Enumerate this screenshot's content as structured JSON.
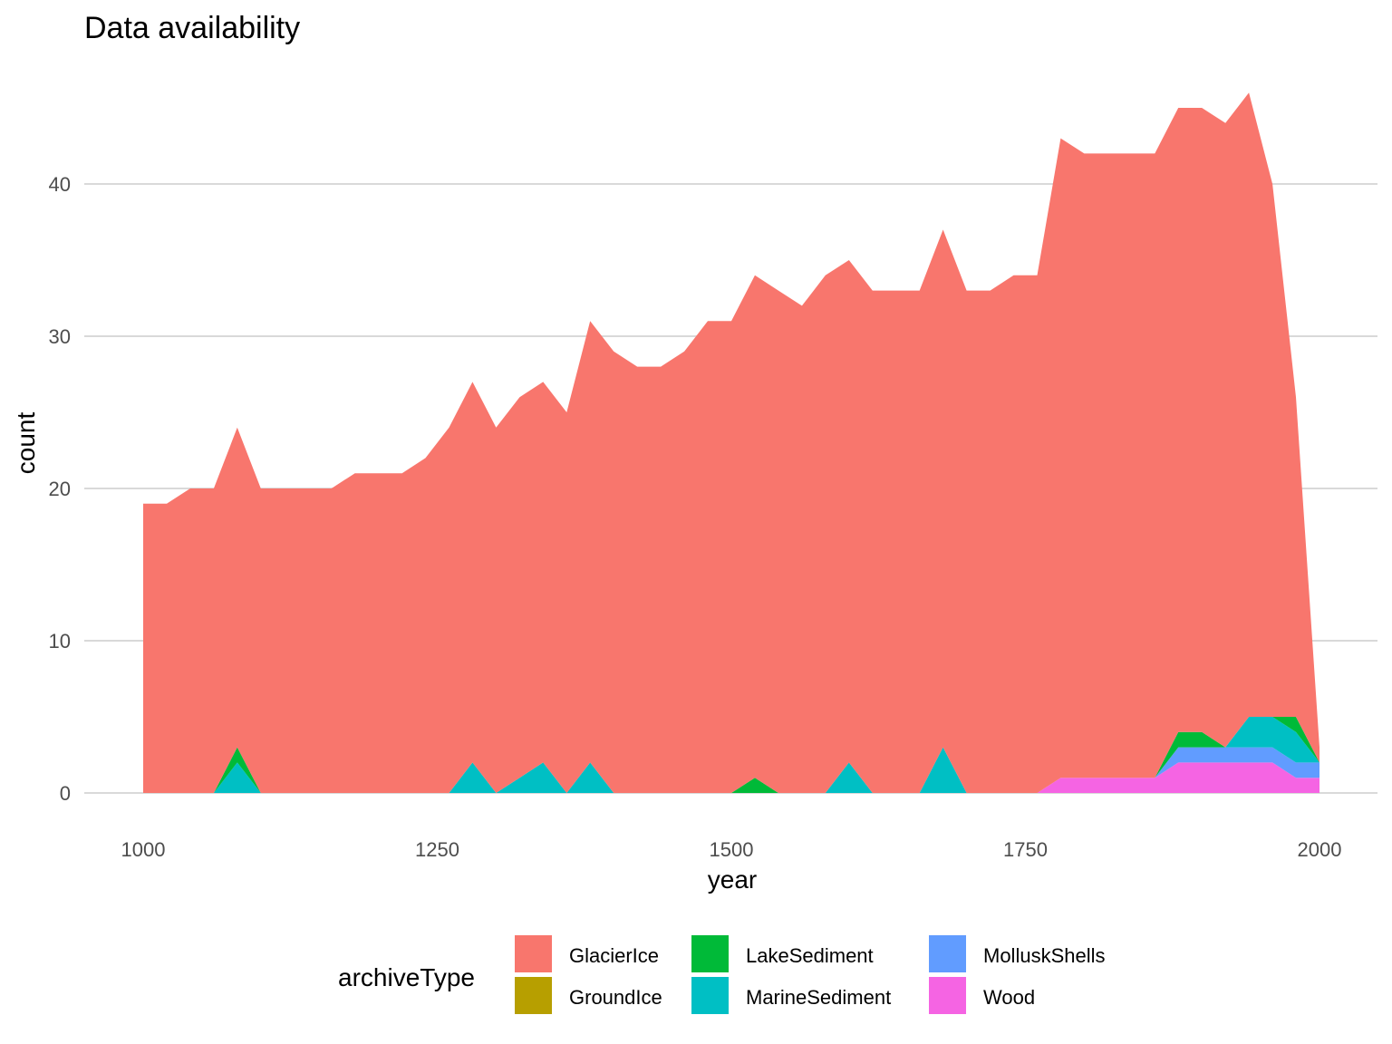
{
  "chart_data": {
    "type": "area",
    "title": "Data availability",
    "xlabel": "year",
    "ylabel": "count",
    "xlim": [
      1000,
      2000
    ],
    "ylim": [
      0,
      46
    ],
    "x_ticks": [
      1000,
      1250,
      1500,
      1750,
      2000
    ],
    "y_ticks": [
      0,
      10,
      20,
      30,
      40
    ],
    "grid": "horizontal major only",
    "stacked": true,
    "legend_title": "archiveType",
    "legend_position": "bottom",
    "x": [
      1000,
      1020,
      1040,
      1060,
      1080,
      1100,
      1120,
      1140,
      1160,
      1180,
      1200,
      1220,
      1240,
      1260,
      1280,
      1300,
      1320,
      1340,
      1360,
      1380,
      1400,
      1420,
      1440,
      1460,
      1480,
      1500,
      1520,
      1540,
      1560,
      1580,
      1600,
      1620,
      1640,
      1660,
      1680,
      1700,
      1720,
      1740,
      1760,
      1780,
      1800,
      1820,
      1840,
      1860,
      1880,
      1900,
      1920,
      1940,
      1960,
      1980,
      2000
    ],
    "total": [
      19,
      19,
      20,
      20,
      24,
      20,
      20,
      20,
      20,
      21,
      21,
      21,
      22,
      24,
      27,
      24,
      26,
      27,
      25,
      31,
      29,
      28,
      28,
      29,
      31,
      31,
      34,
      33,
      32,
      34,
      35,
      33,
      33,
      33,
      37,
      33,
      33,
      34,
      34,
      43,
      42,
      42,
      42,
      42,
      45,
      45,
      44,
      46,
      40,
      26,
      3
    ],
    "series": [
      {
        "name": "Wood",
        "color": "#F564E3",
        "values": [
          0,
          0,
          0,
          0,
          0,
          0,
          0,
          0,
          0,
          0,
          0,
          0,
          0,
          0,
          0,
          0,
          0,
          0,
          0,
          0,
          0,
          0,
          0,
          0,
          0,
          0,
          0,
          0,
          0,
          0,
          0,
          0,
          0,
          0,
          0,
          0,
          0,
          0,
          0,
          1,
          1,
          1,
          1,
          1,
          2,
          2,
          2,
          2,
          2,
          1,
          1
        ]
      },
      {
        "name": "MolluskShells",
        "color": "#619CFF",
        "values": [
          0,
          0,
          0,
          0,
          0,
          0,
          0,
          0,
          0,
          0,
          0,
          0,
          0,
          0,
          0,
          0,
          0,
          0,
          0,
          0,
          0,
          0,
          0,
          0,
          0,
          0,
          0,
          0,
          0,
          0,
          0,
          0,
          0,
          0,
          0,
          0,
          0,
          0,
          0,
          0,
          0,
          0,
          0,
          0,
          1,
          1,
          1,
          1,
          1,
          1,
          1
        ]
      },
      {
        "name": "MarineSediment",
        "color": "#00BFC4",
        "values": [
          0,
          0,
          0,
          0,
          2,
          0,
          0,
          0,
          0,
          0,
          0,
          0,
          0,
          0,
          2,
          0,
          1,
          2,
          0,
          2,
          0,
          0,
          0,
          0,
          0,
          0,
          0,
          0,
          0,
          0,
          2,
          0,
          0,
          0,
          3,
          0,
          0,
          0,
          0,
          0,
          0,
          0,
          0,
          0,
          0,
          0,
          0,
          2,
          2,
          2,
          0
        ]
      },
      {
        "name": "LakeSediment",
        "color": "#00BA38",
        "values": [
          0,
          0,
          0,
          0,
          1,
          0,
          0,
          0,
          0,
          0,
          0,
          0,
          0,
          0,
          0,
          0,
          0,
          0,
          0,
          0,
          0,
          0,
          0,
          0,
          0,
          0,
          1,
          0,
          0,
          0,
          0,
          0,
          0,
          0,
          0,
          0,
          0,
          0,
          0,
          0,
          0,
          0,
          0,
          0,
          1,
          1,
          0,
          0,
          0,
          1,
          0
        ]
      },
      {
        "name": "GroundIce",
        "color": "#B79F00",
        "values": [
          0,
          0,
          0,
          0,
          0,
          0,
          0,
          0,
          0,
          0,
          0,
          0,
          0,
          0,
          0,
          0,
          0,
          0,
          0,
          0,
          0,
          0,
          0,
          0,
          0,
          0,
          0,
          0,
          0,
          0,
          0,
          0,
          0,
          0,
          0,
          0,
          0,
          0,
          0,
          0,
          0,
          0,
          0,
          0,
          0,
          0,
          0,
          0,
          0,
          0,
          0
        ]
      },
      {
        "name": "GlacierIce",
        "color": "#F8766D",
        "values": "remainder (total minus other series)"
      }
    ],
    "legend_order": [
      "GlacierIce",
      "GroundIce",
      "LakeSediment",
      "MarineSediment",
      "MolluskShells",
      "Wood"
    ]
  }
}
